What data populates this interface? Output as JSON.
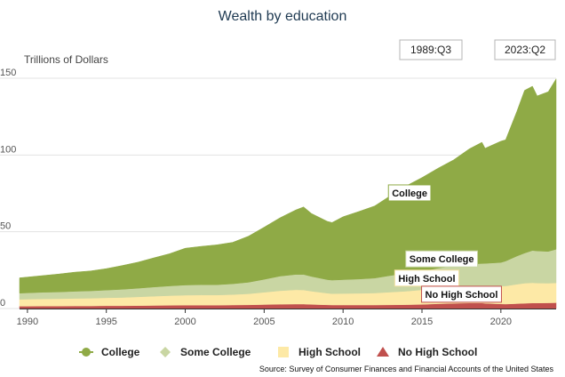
{
  "chart_data": {
    "type": "area",
    "stacked": true,
    "title": "Wealth by education",
    "y_unit_label": "Trillions of Dollars",
    "xlim": [
      1989.5,
      2023.5
    ],
    "ylim": [
      0,
      150
    ],
    "y_ticks": [
      0,
      50,
      100,
      150
    ],
    "x_ticks": [
      1990,
      1995,
      2000,
      2005,
      2010,
      2015,
      2020
    ],
    "grid": true,
    "range_selector": {
      "start": "1989:Q3",
      "end": "2023:Q2"
    },
    "legend_position": "bottom",
    "source": "Source: Survey of Consumer Finances and Financial Accounts of the United States",
    "x": [
      1989.5,
      1990,
      1991,
      1992,
      1993,
      1994,
      1995,
      1996,
      1997,
      1998,
      1999,
      2000,
      2001,
      2002,
      2003,
      2004,
      2005,
      2006,
      2007,
      2007.5,
      2008,
      2009,
      2009.3,
      2010,
      2011,
      2012,
      2013,
      2014,
      2015,
      2016,
      2017,
      2018,
      2018.8,
      2019,
      2020,
      2020.3,
      2021,
      2021.5,
      2022,
      2022.3,
      2023,
      2023.5
    ],
    "series": [
      {
        "name": "No High School",
        "color": "#c0504d",
        "values": [
          1.5,
          1.5,
          1.6,
          1.6,
          1.7,
          1.7,
          1.8,
          1.8,
          1.9,
          2.0,
          2.1,
          2.2,
          2.2,
          2.2,
          2.3,
          2.4,
          2.6,
          2.8,
          2.9,
          2.9,
          2.7,
          2.4,
          2.3,
          2.3,
          2.3,
          2.3,
          2.4,
          2.5,
          2.7,
          3.1,
          3.4,
          3.6,
          3.6,
          3.4,
          3.0,
          2.9,
          3.2,
          3.4,
          3.6,
          3.6,
          3.7,
          3.8
        ]
      },
      {
        "name": "High School",
        "color": "#fde9a6",
        "values": [
          4.5,
          4.6,
          4.7,
          4.8,
          4.9,
          5.0,
          5.2,
          5.4,
          5.7,
          6.0,
          6.3,
          6.5,
          6.6,
          6.6,
          6.8,
          7.2,
          8.0,
          8.8,
          9.3,
          9.2,
          8.6,
          7.6,
          7.4,
          7.5,
          7.6,
          7.8,
          8.3,
          8.8,
          9.5,
          10.2,
          10.6,
          11.0,
          11.1,
          11.2,
          11.6,
          11.8,
          12.6,
          13.1,
          13.2,
          13.0,
          12.8,
          12.9
        ]
      },
      {
        "name": "Some College",
        "color": "#c9d6a3",
        "values": [
          4.0,
          4.1,
          4.3,
          4.4,
          4.6,
          4.8,
          5.0,
          5.3,
          5.6,
          6.0,
          6.3,
          6.6,
          6.7,
          6.7,
          7.0,
          7.5,
          8.4,
          9.5,
          10.0,
          10.1,
          9.6,
          8.8,
          8.8,
          9.0,
          9.3,
          9.7,
          10.8,
          11.6,
          12.1,
          13.0,
          13.8,
          14.4,
          14.6,
          14.8,
          15.4,
          16.2,
          18.3,
          19.6,
          21.0,
          20.9,
          20.7,
          21.9
        ]
      },
      {
        "name": "College",
        "color": "#8faa46",
        "values": [
          10.0,
          10.3,
          10.9,
          11.7,
          12.5,
          13.0,
          14.0,
          15.5,
          17.0,
          19.0,
          21.0,
          24.0,
          25.0,
          26.0,
          27.0,
          30.0,
          34.0,
          38.0,
          42.0,
          44.0,
          41.0,
          38.0,
          37.5,
          41.0,
          44.0,
          47.0,
          52.0,
          57.0,
          61.0,
          65.0,
          69.0,
          75.0,
          79.0,
          75.0,
          79.0,
          79.0,
          94.0,
          106.0,
          107.0,
          101.0,
          104.0,
          111.0
        ]
      }
    ],
    "annotations": [
      {
        "label": "College",
        "x": 2013.1,
        "y": 73
      },
      {
        "label": "Some College",
        "x": 2014.2,
        "y": 30
      },
      {
        "label": "High School",
        "x": 2013.5,
        "y": 17.5
      },
      {
        "label": "No High School",
        "x": 2015.2,
        "y": 7
      }
    ]
  }
}
